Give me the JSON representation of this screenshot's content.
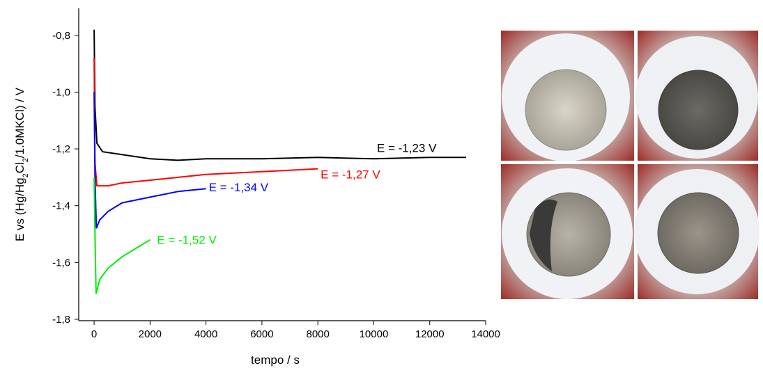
{
  "chart_data": {
    "type": "line",
    "x_label": "tempo / s",
    "y_label_parts": [
      "E vs (Hg/Hg",
      "2",
      "Cl",
      "2",
      "/1.0MKCl) / V"
    ],
    "xlim": [
      -550,
      14000
    ],
    "ylim": [
      -1.805,
      -0.705
    ],
    "xticks": [
      0,
      2000,
      4000,
      6000,
      8000,
      10000,
      12000,
      14000
    ],
    "yticks": [
      {
        "value": -0.8,
        "label": "-0,8"
      },
      {
        "value": -1.0,
        "label": "-1,0"
      },
      {
        "value": -1.2,
        "label": "-1,2"
      },
      {
        "value": -1.4,
        "label": "-1,4"
      },
      {
        "value": -1.6,
        "label": "-1,6"
      },
      {
        "value": -1.8,
        "label": "-1,8"
      }
    ],
    "series": [
      {
        "name": "E = -1,23 V",
        "color": "#000000",
        "x": [
          0,
          30,
          100,
          300,
          1000,
          2000,
          3000,
          4000,
          6000,
          8000,
          10000,
          12000,
          13300
        ],
        "values": [
          -0.78,
          -1.05,
          -1.18,
          -1.21,
          -1.22,
          -1.235,
          -1.24,
          -1.235,
          -1.235,
          -1.23,
          -1.235,
          -1.23,
          -1.23
        ]
      },
      {
        "name": "E = -1,27 V",
        "color": "#ff0000",
        "x": [
          0,
          30,
          100,
          500,
          1000,
          2000,
          3000,
          4000,
          5000,
          6000,
          7000,
          8000
        ],
        "values": [
          -0.88,
          -1.25,
          -1.33,
          -1.33,
          -1.32,
          -1.31,
          -1.3,
          -1.29,
          -1.285,
          -1.28,
          -1.275,
          -1.27
        ]
      },
      {
        "name": "E = -1,34 V",
        "color": "#0000ff",
        "x": [
          0,
          30,
          80,
          200,
          500,
          1000,
          2000,
          3000,
          4000
        ],
        "values": [
          -1.0,
          -1.3,
          -1.48,
          -1.45,
          -1.42,
          -1.39,
          -1.37,
          -1.35,
          -1.34
        ]
      },
      {
        "name": "E = -1,52 V",
        "color": "#00ee00",
        "x": [
          0,
          30,
          70,
          200,
          500,
          1000,
          1500,
          2000
        ],
        "values": [
          -1.3,
          -1.5,
          -1.71,
          -1.66,
          -1.62,
          -1.58,
          -1.55,
          -1.52
        ]
      }
    ]
  }
}
